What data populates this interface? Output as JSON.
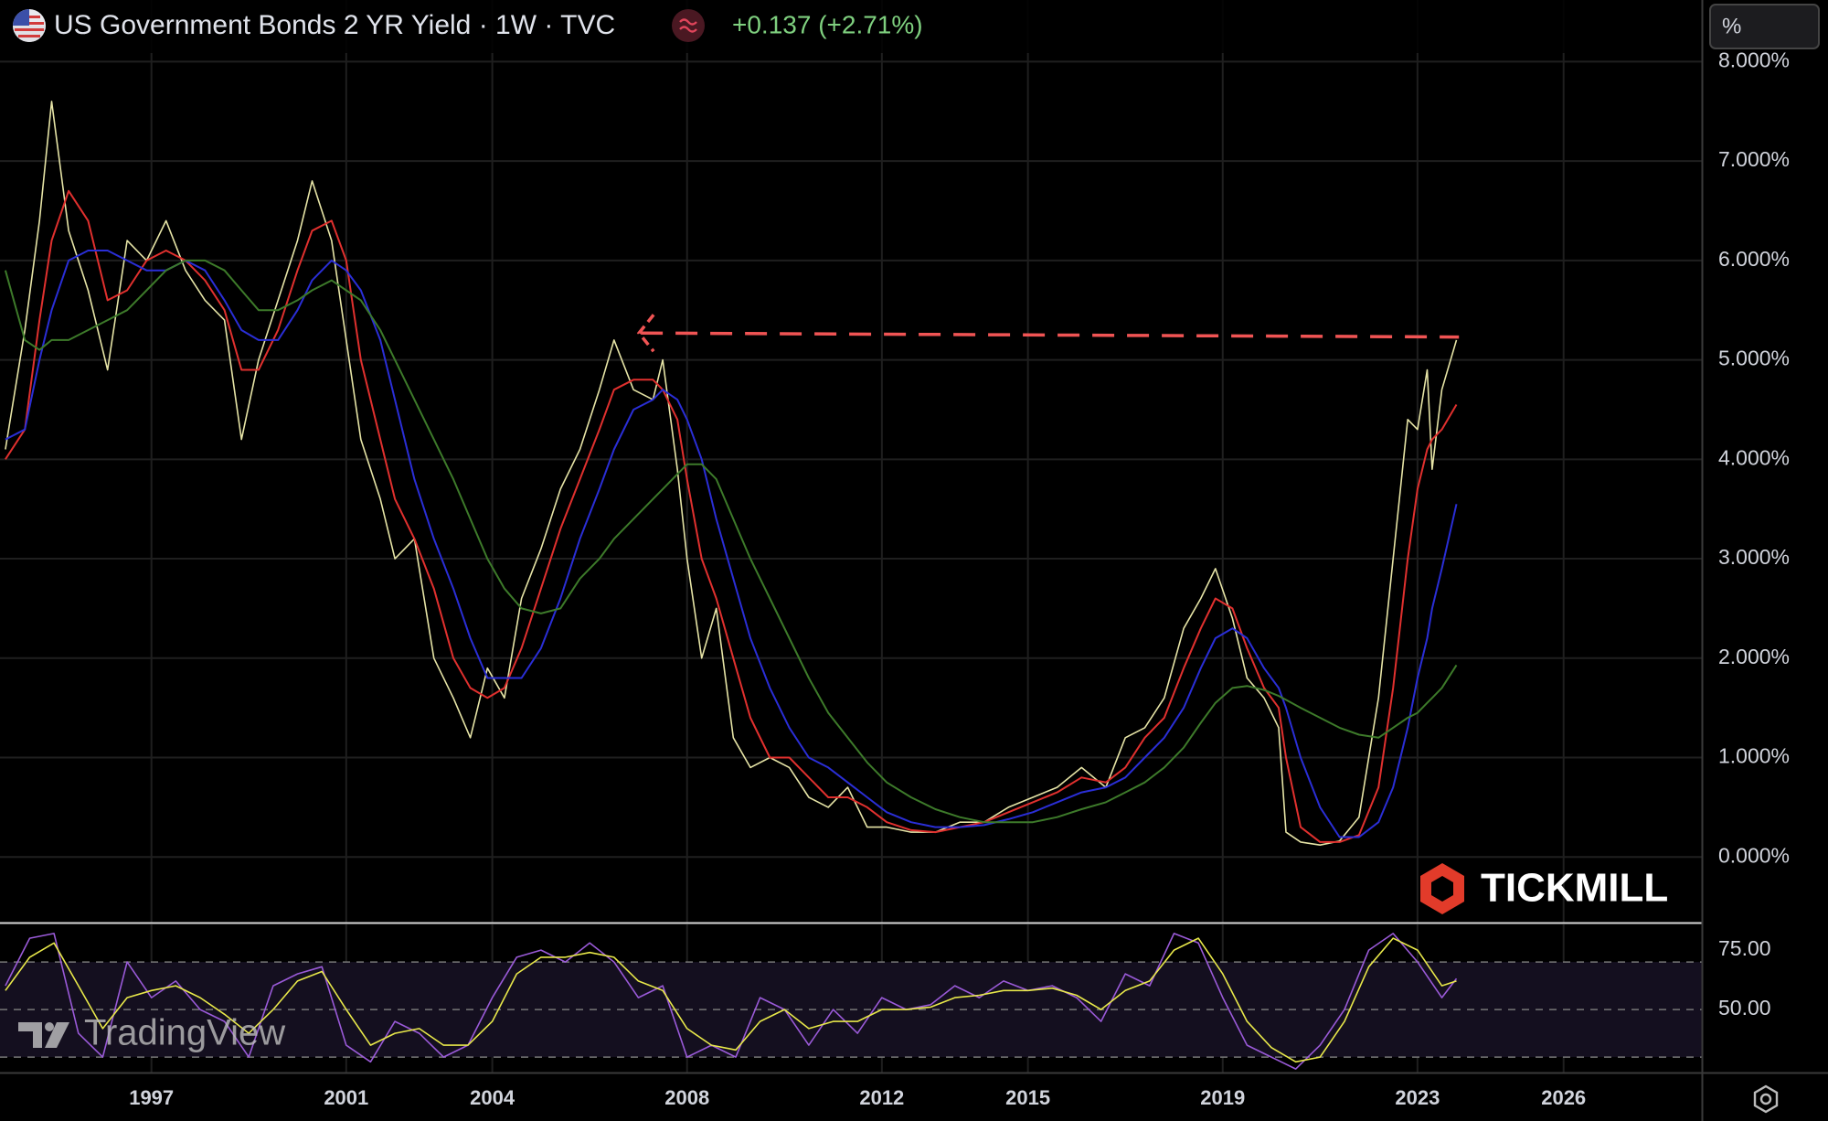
{
  "header": {
    "title": "US Government Bonds 2 YR Yield · 1W · TVC",
    "change": "+0.137 (+2.71%)",
    "unit_button": "%"
  },
  "watermarks": {
    "broker": "TICKMILL",
    "platform": "TradingView"
  },
  "chart_data": [
    {
      "type": "line",
      "log_scale": false,
      "grid": true,
      "x": [
        1994.0,
        1994.4,
        1994.7,
        1994.95,
        1995.3,
        1995.7,
        1996.1,
        1996.5,
        1996.9,
        1997.3,
        1997.7,
        1998.1,
        1998.5,
        1998.85,
        1999.2,
        1999.6,
        2000.0,
        2000.3,
        2000.7,
        2001.0,
        2001.3,
        2001.7,
        2002.0,
        2002.4,
        2002.8,
        2003.2,
        2003.55,
        2003.9,
        2004.25,
        2004.6,
        2005.0,
        2005.4,
        2005.8,
        2006.2,
        2006.5,
        2006.9,
        2007.3,
        2007.5,
        2007.8,
        2008.0,
        2008.3,
        2008.6,
        2008.95,
        2009.3,
        2009.7,
        2010.1,
        2010.5,
        2010.9,
        2011.3,
        2011.7,
        2012.1,
        2012.6,
        2013.1,
        2013.6,
        2014.1,
        2014.6,
        2015.1,
        2015.6,
        2016.1,
        2016.6,
        2017.0,
        2017.4,
        2017.8,
        2018.2,
        2018.55,
        2018.85,
        2019.2,
        2019.5,
        2019.85,
        2020.15,
        2020.3,
        2020.6,
        2021.0,
        2021.4,
        2021.8,
        2022.2,
        2022.5,
        2022.8,
        2023.0,
        2023.2,
        2023.3,
        2023.5,
        2023.8
      ],
      "series": [
        {
          "color": "#e6e4a6",
          "width": 1.6,
          "values": [
            4.1,
            5.3,
            6.4,
            7.6,
            6.3,
            5.7,
            4.9,
            6.2,
            6.0,
            6.4,
            5.9,
            5.6,
            5.4,
            4.2,
            5.0,
            5.6,
            6.2,
            6.8,
            6.2,
            5.2,
            4.2,
            3.6,
            3.0,
            3.2,
            2.0,
            1.6,
            1.2,
            1.9,
            1.6,
            2.6,
            3.1,
            3.7,
            4.1,
            4.7,
            5.2,
            4.7,
            4.6,
            5.0,
            3.9,
            3.0,
            2.0,
            2.5,
            1.2,
            0.9,
            1.0,
            0.9,
            0.6,
            0.5,
            0.7,
            0.3,
            0.3,
            0.25,
            0.25,
            0.35,
            0.35,
            0.5,
            0.6,
            0.7,
            0.9,
            0.7,
            1.2,
            1.3,
            1.6,
            2.3,
            2.6,
            2.9,
            2.4,
            1.8,
            1.6,
            1.3,
            0.25,
            0.15,
            0.12,
            0.16,
            0.4,
            1.6,
            3.0,
            4.4,
            4.3,
            4.9,
            3.9,
            4.7,
            5.2
          ]
        },
        {
          "color": "#e0302e",
          "width": 2,
          "values": [
            4.0,
            4.3,
            5.4,
            6.2,
            6.7,
            6.4,
            5.6,
            5.7,
            6.0,
            6.1,
            6.0,
            5.8,
            5.5,
            4.9,
            4.9,
            5.3,
            5.9,
            6.3,
            6.4,
            6.0,
            5.0,
            4.2,
            3.6,
            3.2,
            2.7,
            2.0,
            1.7,
            1.6,
            1.7,
            2.1,
            2.7,
            3.3,
            3.8,
            4.3,
            4.7,
            4.8,
            4.8,
            4.7,
            4.4,
            3.8,
            3.0,
            2.6,
            2.0,
            1.4,
            1.0,
            1.0,
            0.8,
            0.6,
            0.6,
            0.5,
            0.35,
            0.27,
            0.25,
            0.3,
            0.35,
            0.45,
            0.55,
            0.65,
            0.8,
            0.75,
            0.9,
            1.2,
            1.4,
            1.9,
            2.3,
            2.6,
            2.5,
            2.1,
            1.7,
            1.5,
            1.0,
            0.3,
            0.15,
            0.15,
            0.22,
            0.7,
            1.7,
            3.0,
            3.7,
            4.1,
            4.2,
            4.3,
            4.55
          ]
        },
        {
          "color": "#2a2ed6",
          "width": 2,
          "values": [
            4.2,
            4.3,
            5.0,
            5.5,
            6.0,
            6.1,
            6.1,
            6.0,
            5.9,
            5.9,
            6.0,
            5.9,
            5.6,
            5.3,
            5.2,
            5.2,
            5.5,
            5.8,
            6.0,
            5.9,
            5.7,
            5.2,
            4.6,
            3.8,
            3.2,
            2.7,
            2.2,
            1.8,
            1.8,
            1.8,
            2.1,
            2.6,
            3.2,
            3.7,
            4.1,
            4.5,
            4.6,
            4.7,
            4.6,
            4.4,
            4.0,
            3.4,
            2.8,
            2.2,
            1.7,
            1.3,
            1.0,
            0.9,
            0.75,
            0.6,
            0.45,
            0.35,
            0.3,
            0.3,
            0.32,
            0.38,
            0.45,
            0.55,
            0.65,
            0.7,
            0.8,
            1.0,
            1.2,
            1.5,
            1.9,
            2.2,
            2.3,
            2.2,
            1.9,
            1.7,
            1.5,
            1.0,
            0.5,
            0.2,
            0.2,
            0.35,
            0.7,
            1.3,
            1.8,
            2.2,
            2.5,
            2.9,
            3.55
          ]
        },
        {
          "color": "#3d7a2a",
          "width": 2,
          "values": [
            5.9,
            5.2,
            5.1,
            5.2,
            5.2,
            5.3,
            5.4,
            5.5,
            5.7,
            5.9,
            6.0,
            6.0,
            5.9,
            5.7,
            5.5,
            5.5,
            5.6,
            5.7,
            5.8,
            5.7,
            5.6,
            5.3,
            5.0,
            4.6,
            4.2,
            3.8,
            3.4,
            3.0,
            2.7,
            2.5,
            2.45,
            2.5,
            2.8,
            3.0,
            3.2,
            3.4,
            3.6,
            3.7,
            3.85,
            3.95,
            3.95,
            3.8,
            3.4,
            3.0,
            2.6,
            2.2,
            1.8,
            1.45,
            1.2,
            0.95,
            0.75,
            0.6,
            0.48,
            0.4,
            0.35,
            0.35,
            0.35,
            0.4,
            0.48,
            0.55,
            0.65,
            0.75,
            0.9,
            1.1,
            1.35,
            1.55,
            1.7,
            1.72,
            1.68,
            1.62,
            1.58,
            1.5,
            1.4,
            1.3,
            1.23,
            1.2,
            1.3,
            1.4,
            1.45,
            1.55,
            1.6,
            1.7,
            1.93
          ]
        }
      ],
      "trend_line": {
        "x": [
          2007.05,
          2023.85
        ],
        "y": [
          5.27,
          5.23
        ],
        "color": "#f05454"
      },
      "xlim": [
        1993.89,
        2028.84
      ],
      "xticks": [
        1997,
        2001,
        2004,
        2008,
        2012,
        2015,
        2019,
        2023,
        2026
      ],
      "ylim": [
        -0.66,
        8.62
      ],
      "yticks": [
        {
          "value": 8,
          "label": "8.000%"
        },
        {
          "value": 7,
          "label": "7.000%"
        },
        {
          "value": 6,
          "label": "6.000%"
        },
        {
          "value": 5,
          "label": "5.000%"
        },
        {
          "value": 4,
          "label": "4.000%"
        },
        {
          "value": 3,
          "label": "3.000%"
        },
        {
          "value": 2,
          "label": "2.000%"
        },
        {
          "value": 1,
          "label": "1.000%"
        },
        {
          "value": 0,
          "label": "0.000%"
        }
      ]
    },
    {
      "type": "line",
      "grid": true,
      "x": [
        1994.0,
        1994.5,
        1995.0,
        1995.5,
        1996.0,
        1996.5,
        1997.0,
        1997.5,
        1998.0,
        1998.5,
        1999.0,
        1999.5,
        2000.0,
        2000.5,
        2001.0,
        2001.5,
        2002.0,
        2002.5,
        2003.0,
        2003.5,
        2004.0,
        2004.5,
        2005.0,
        2005.5,
        2006.0,
        2006.5,
        2007.0,
        2007.5,
        2008.0,
        2008.5,
        2009.0,
        2009.5,
        2010.0,
        2010.5,
        2011.0,
        2011.5,
        2012.0,
        2012.5,
        2013.0,
        2013.5,
        2014.0,
        2014.5,
        2015.0,
        2015.5,
        2016.0,
        2016.5,
        2017.0,
        2017.5,
        2018.0,
        2018.5,
        2019.0,
        2019.5,
        2020.0,
        2020.5,
        2021.0,
        2021.5,
        2022.0,
        2022.5,
        2023.0,
        2023.5,
        2023.8
      ],
      "series": [
        {
          "color": "#9a5ad8",
          "width": 1.6,
          "values": [
            60,
            80,
            82,
            40,
            30,
            70,
            55,
            62,
            50,
            45,
            30,
            60,
            65,
            68,
            35,
            28,
            45,
            40,
            30,
            35,
            55,
            72,
            75,
            70,
            78,
            70,
            55,
            60,
            30,
            35,
            30,
            55,
            50,
            35,
            50,
            40,
            55,
            50,
            52,
            60,
            55,
            62,
            58,
            60,
            55,
            45,
            65,
            60,
            82,
            78,
            55,
            35,
            30,
            25,
            35,
            50,
            75,
            82,
            70,
            55,
            63
          ]
        },
        {
          "color": "#e8e84a",
          "width": 1.6,
          "values": [
            58,
            72,
            78,
            60,
            42,
            55,
            58,
            60,
            55,
            48,
            40,
            50,
            62,
            66,
            50,
            35,
            40,
            42,
            35,
            35,
            45,
            65,
            72,
            72,
            74,
            72,
            62,
            58,
            42,
            35,
            33,
            45,
            50,
            42,
            45,
            45,
            50,
            50,
            51,
            55,
            56,
            58,
            58,
            59,
            56,
            50,
            58,
            62,
            75,
            80,
            65,
            45,
            34,
            28,
            30,
            45,
            68,
            80,
            75,
            60,
            62
          ]
        }
      ],
      "ylim": [
        23.5,
        85.8
      ],
      "yticks": [
        {
          "value": 75,
          "label": "75.00"
        },
        {
          "value": 50,
          "label": "50.00"
        }
      ],
      "hlines": [
        70,
        50,
        30
      ]
    }
  ]
}
